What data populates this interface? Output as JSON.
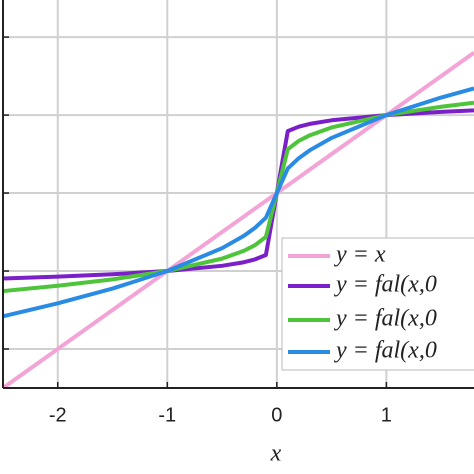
{
  "chart_data": {
    "type": "line",
    "x_label": "x",
    "x": [
      -2.5,
      -2,
      -1.5,
      -1,
      -0.5,
      -0.3,
      -0.2,
      -0.1,
      0,
      0.1,
      0.2,
      0.3,
      0.5,
      1,
      1.5,
      1.8
    ],
    "series": [
      {
        "name": "y = x",
        "color": "#f4a3d6",
        "values": [
          -2.5,
          -2,
          -1.5,
          -1,
          -0.5,
          -0.3,
          -0.2,
          -0.1,
          0,
          0.1,
          0.2,
          0.3,
          0.5,
          1,
          1.5,
          1.8
        ]
      },
      {
        "name": "y = fal(x,0",
        "color": "#7b1fc9",
        "values": [
          -1.096,
          -1.072,
          -1.041,
          -1,
          -0.933,
          -0.887,
          -0.851,
          -0.794,
          0,
          0.794,
          0.851,
          0.887,
          0.933,
          1,
          1.041,
          1.06
        ]
      },
      {
        "name": "y = fal(x,0",
        "color": "#4ec43a",
        "values": [
          -1.257,
          -1.189,
          -1.107,
          -1,
          -0.841,
          -0.74,
          -0.669,
          -0.562,
          0,
          0.562,
          0.669,
          0.74,
          0.841,
          1,
          1.107,
          1.158
        ]
      },
      {
        "name": "y = fal(x,0",
        "color": "#2a8be4",
        "values": [
          -1.581,
          -1.414,
          -1.225,
          -1,
          -0.707,
          -0.548,
          -0.447,
          -0.316,
          0,
          0.316,
          0.447,
          0.548,
          0.707,
          1,
          1.225,
          1.342
        ]
      }
    ],
    "xlim": [
      -2.5,
      1.8
    ],
    "ylim": [
      -2.5,
      2.45
    ],
    "xticks": [
      -2,
      -1,
      0,
      1
    ],
    "yticks": [
      -2,
      -1,
      0,
      1,
      2
    ],
    "grid": true
  }
}
